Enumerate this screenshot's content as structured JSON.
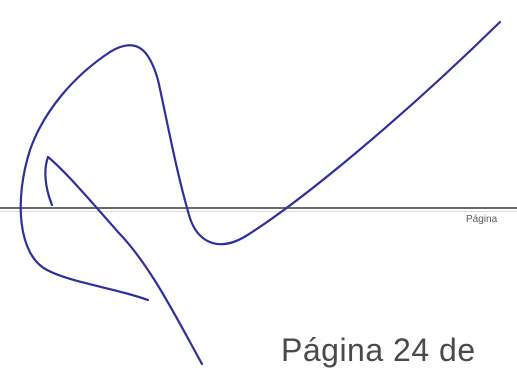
{
  "page": {
    "footer_small": "Página",
    "footer_large": "Página 24 de"
  },
  "signature": {
    "ink_color": "#2f2f9e"
  }
}
